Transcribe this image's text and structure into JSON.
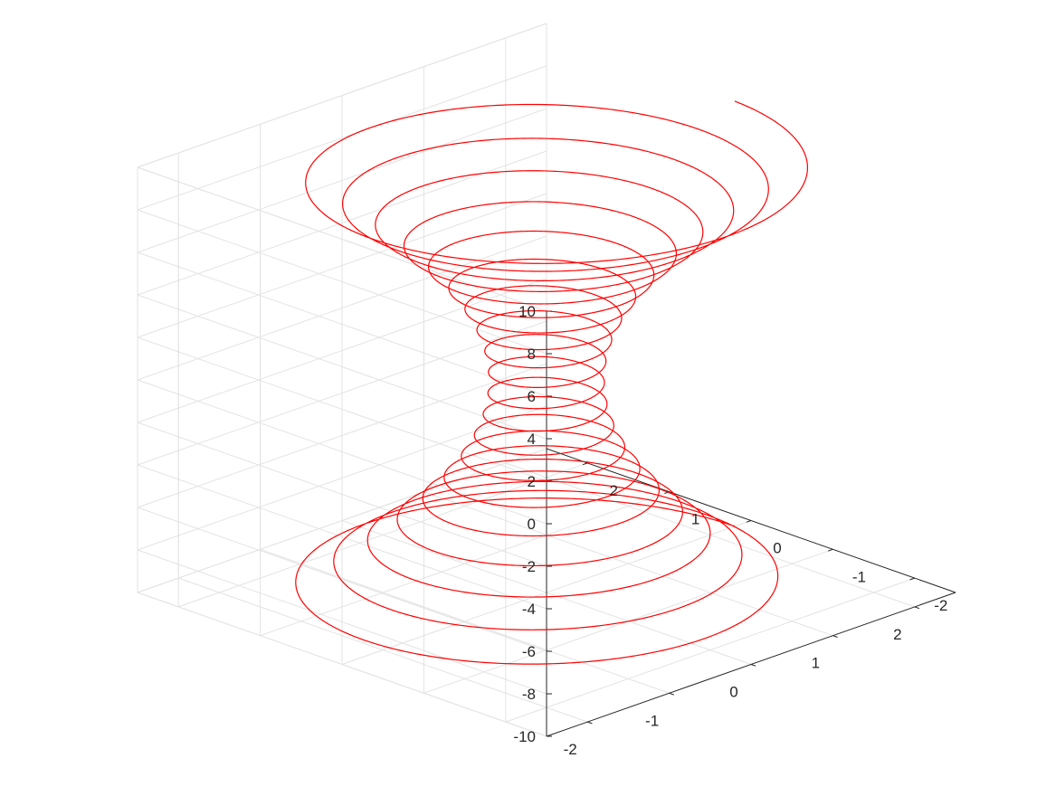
{
  "chart_data": {
    "type": "line3d",
    "title": "",
    "xlabel": "",
    "ylabel": "",
    "zlabel": "",
    "xlim": [
      -2.5,
      2.5
    ],
    "ylim": [
      -2.5,
      2.5
    ],
    "zlim": [
      -10,
      10
    ],
    "x_ticks": [
      "-2",
      "-1",
      "0",
      "1",
      "2"
    ],
    "y_ticks": [
      "-2",
      "-1",
      "0",
      "1",
      "2"
    ],
    "z_ticks": [
      "-10",
      "-8",
      "-6",
      "-4",
      "-2",
      "0",
      "2",
      "4",
      "6",
      "8",
      "10"
    ],
    "grid": true,
    "series": [
      {
        "style": "helix (hourglass spiral)",
        "color": "#ff0000",
        "z_range": [
          -10,
          10
        ],
        "turns": 20,
        "radius_at_z0": 0.5,
        "radius_at_z_ends": 2.3,
        "radius_formula": "0.5 + 0.018*z^2"
      }
    ]
  }
}
